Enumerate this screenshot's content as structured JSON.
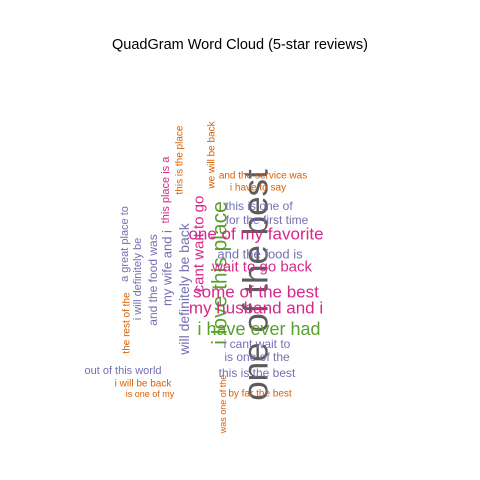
{
  "chart_data": {
    "type": "wordcloud",
    "title": "QuadGram Word Cloud (5-star reviews)",
    "colors": {
      "grey": "#5b5b5b",
      "green": "#5aa02c",
      "pink": "#d6288a",
      "purple": "#7570b3",
      "orange": "#d95f02"
    },
    "words": [
      {
        "text": "one of the best",
        "freq": 10,
        "color": "grey",
        "rot": -90
      },
      {
        "text": "i love this place",
        "freq": 6,
        "color": "green",
        "rot": -90
      },
      {
        "text": "i have ever had",
        "freq": 5,
        "color": "green",
        "rot": 0
      },
      {
        "text": "one of my favorite",
        "freq": 5,
        "color": "pink",
        "rot": 0
      },
      {
        "text": "some of the best",
        "freq": 5,
        "color": "pink",
        "rot": 0
      },
      {
        "text": "my husband and i",
        "freq": 5,
        "color": "pink",
        "rot": 0
      },
      {
        "text": "cant wait to go",
        "freq": 4,
        "color": "pink",
        "rot": -90
      },
      {
        "text": "wait to go back",
        "freq": 4,
        "color": "pink",
        "rot": 0
      },
      {
        "text": "will definitely be back",
        "freq": 3,
        "color": "purple",
        "rot": -90
      },
      {
        "text": "and the food is",
        "freq": 3,
        "color": "purple",
        "rot": 0
      },
      {
        "text": "my wife and i",
        "freq": 3,
        "color": "purple",
        "rot": -90
      },
      {
        "text": "this is one of",
        "freq": 3,
        "color": "purple",
        "rot": 0
      },
      {
        "text": "i cant wait to",
        "freq": 3,
        "color": "purple",
        "rot": 0
      },
      {
        "text": "is one of the",
        "freq": 3,
        "color": "purple",
        "rot": 0
      },
      {
        "text": "for the first time",
        "freq": 3,
        "color": "purple",
        "rot": 0
      },
      {
        "text": "and the food was",
        "freq": 3,
        "color": "purple",
        "rot": -90
      },
      {
        "text": "this is the best",
        "freq": 3,
        "color": "purple",
        "rot": 0
      },
      {
        "text": "out of this world",
        "freq": 3,
        "color": "purple",
        "rot": 0
      },
      {
        "text": "i will definitely be",
        "freq": 3,
        "color": "purple",
        "rot": -90
      },
      {
        "text": "a great place to",
        "freq": 3,
        "color": "purple",
        "rot": -90
      },
      {
        "text": "this place is a",
        "freq": 2,
        "color": "pink",
        "rot": -90
      },
      {
        "text": "and the service was",
        "freq": 2,
        "color": "orange",
        "rot": 0
      },
      {
        "text": "i have to say",
        "freq": 2,
        "color": "orange",
        "rot": 0
      },
      {
        "text": "this is the place",
        "freq": 2,
        "color": "orange",
        "rot": -90
      },
      {
        "text": "we will be back",
        "freq": 2,
        "color": "orange",
        "rot": -90
      },
      {
        "text": "the rest of the",
        "freq": 2,
        "color": "orange",
        "rot": -90
      },
      {
        "text": "i will be back",
        "freq": 2,
        "color": "orange",
        "rot": 0
      },
      {
        "text": "is one of my",
        "freq": 2,
        "color": "orange",
        "rot": 0
      },
      {
        "text": "was one of the",
        "freq": 2,
        "color": "orange",
        "rot": -90
      },
      {
        "text": "by far the best",
        "freq": 2,
        "color": "orange",
        "rot": 0
      }
    ]
  }
}
